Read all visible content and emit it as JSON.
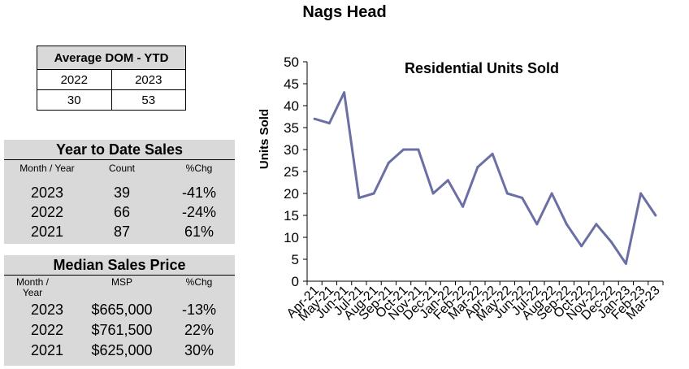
{
  "title": "Nags Head",
  "dom": {
    "header": "Average DOM - YTD",
    "years": [
      "2022",
      "2023"
    ],
    "values": [
      "30",
      "53"
    ]
  },
  "ytd_sales": {
    "title": "Year to Date Sales",
    "headers": [
      "Month / Year",
      "Count",
      "%Chg"
    ],
    "rows": [
      [
        "2023",
        "39",
        "-41%"
      ],
      [
        "2022",
        "66",
        "-24%"
      ],
      [
        "2021",
        "87",
        "61%"
      ]
    ]
  },
  "median_price": {
    "title": "Median Sales Price",
    "headers": [
      "Month /\nYear",
      "MSP",
      "%Chg"
    ],
    "rows": [
      [
        "2023",
        "$665,000",
        "-13%"
      ],
      [
        "2022",
        "$761,500",
        "22%"
      ],
      [
        "2021",
        "$625,000",
        "30%"
      ]
    ]
  },
  "chart_data": {
    "type": "line",
    "title": "Residential Units Sold",
    "xlabel": "",
    "ylabel": "Units Sold",
    "ylim": [
      0,
      50
    ],
    "yticks": [
      0,
      5,
      10,
      15,
      20,
      25,
      30,
      35,
      40,
      45,
      50
    ],
    "categories": [
      "Apr-21",
      "May-21",
      "Jun-21",
      "Jul-21",
      "Aug-21",
      "Sep-21",
      "Oct-21",
      "Nov-21",
      "Dec-21",
      "Jan-22",
      "Feb-22",
      "Mar-22",
      "Apr-22",
      "May-22",
      "Jun-22",
      "Jul-22",
      "Aug-22",
      "Sep-22",
      "Oct-22",
      "Nov-22",
      "Dec-22",
      "Jan-23",
      "Feb-23",
      "Mar-23"
    ],
    "series": [
      {
        "name": "Residential Units Sold",
        "color": "#6b6fa3",
        "values": [
          37,
          36,
          43,
          19,
          20,
          27,
          30,
          30,
          20,
          23,
          17,
          26,
          29,
          20,
          19,
          13,
          20,
          13,
          8,
          13,
          9,
          4,
          20,
          15
        ]
      }
    ]
  }
}
